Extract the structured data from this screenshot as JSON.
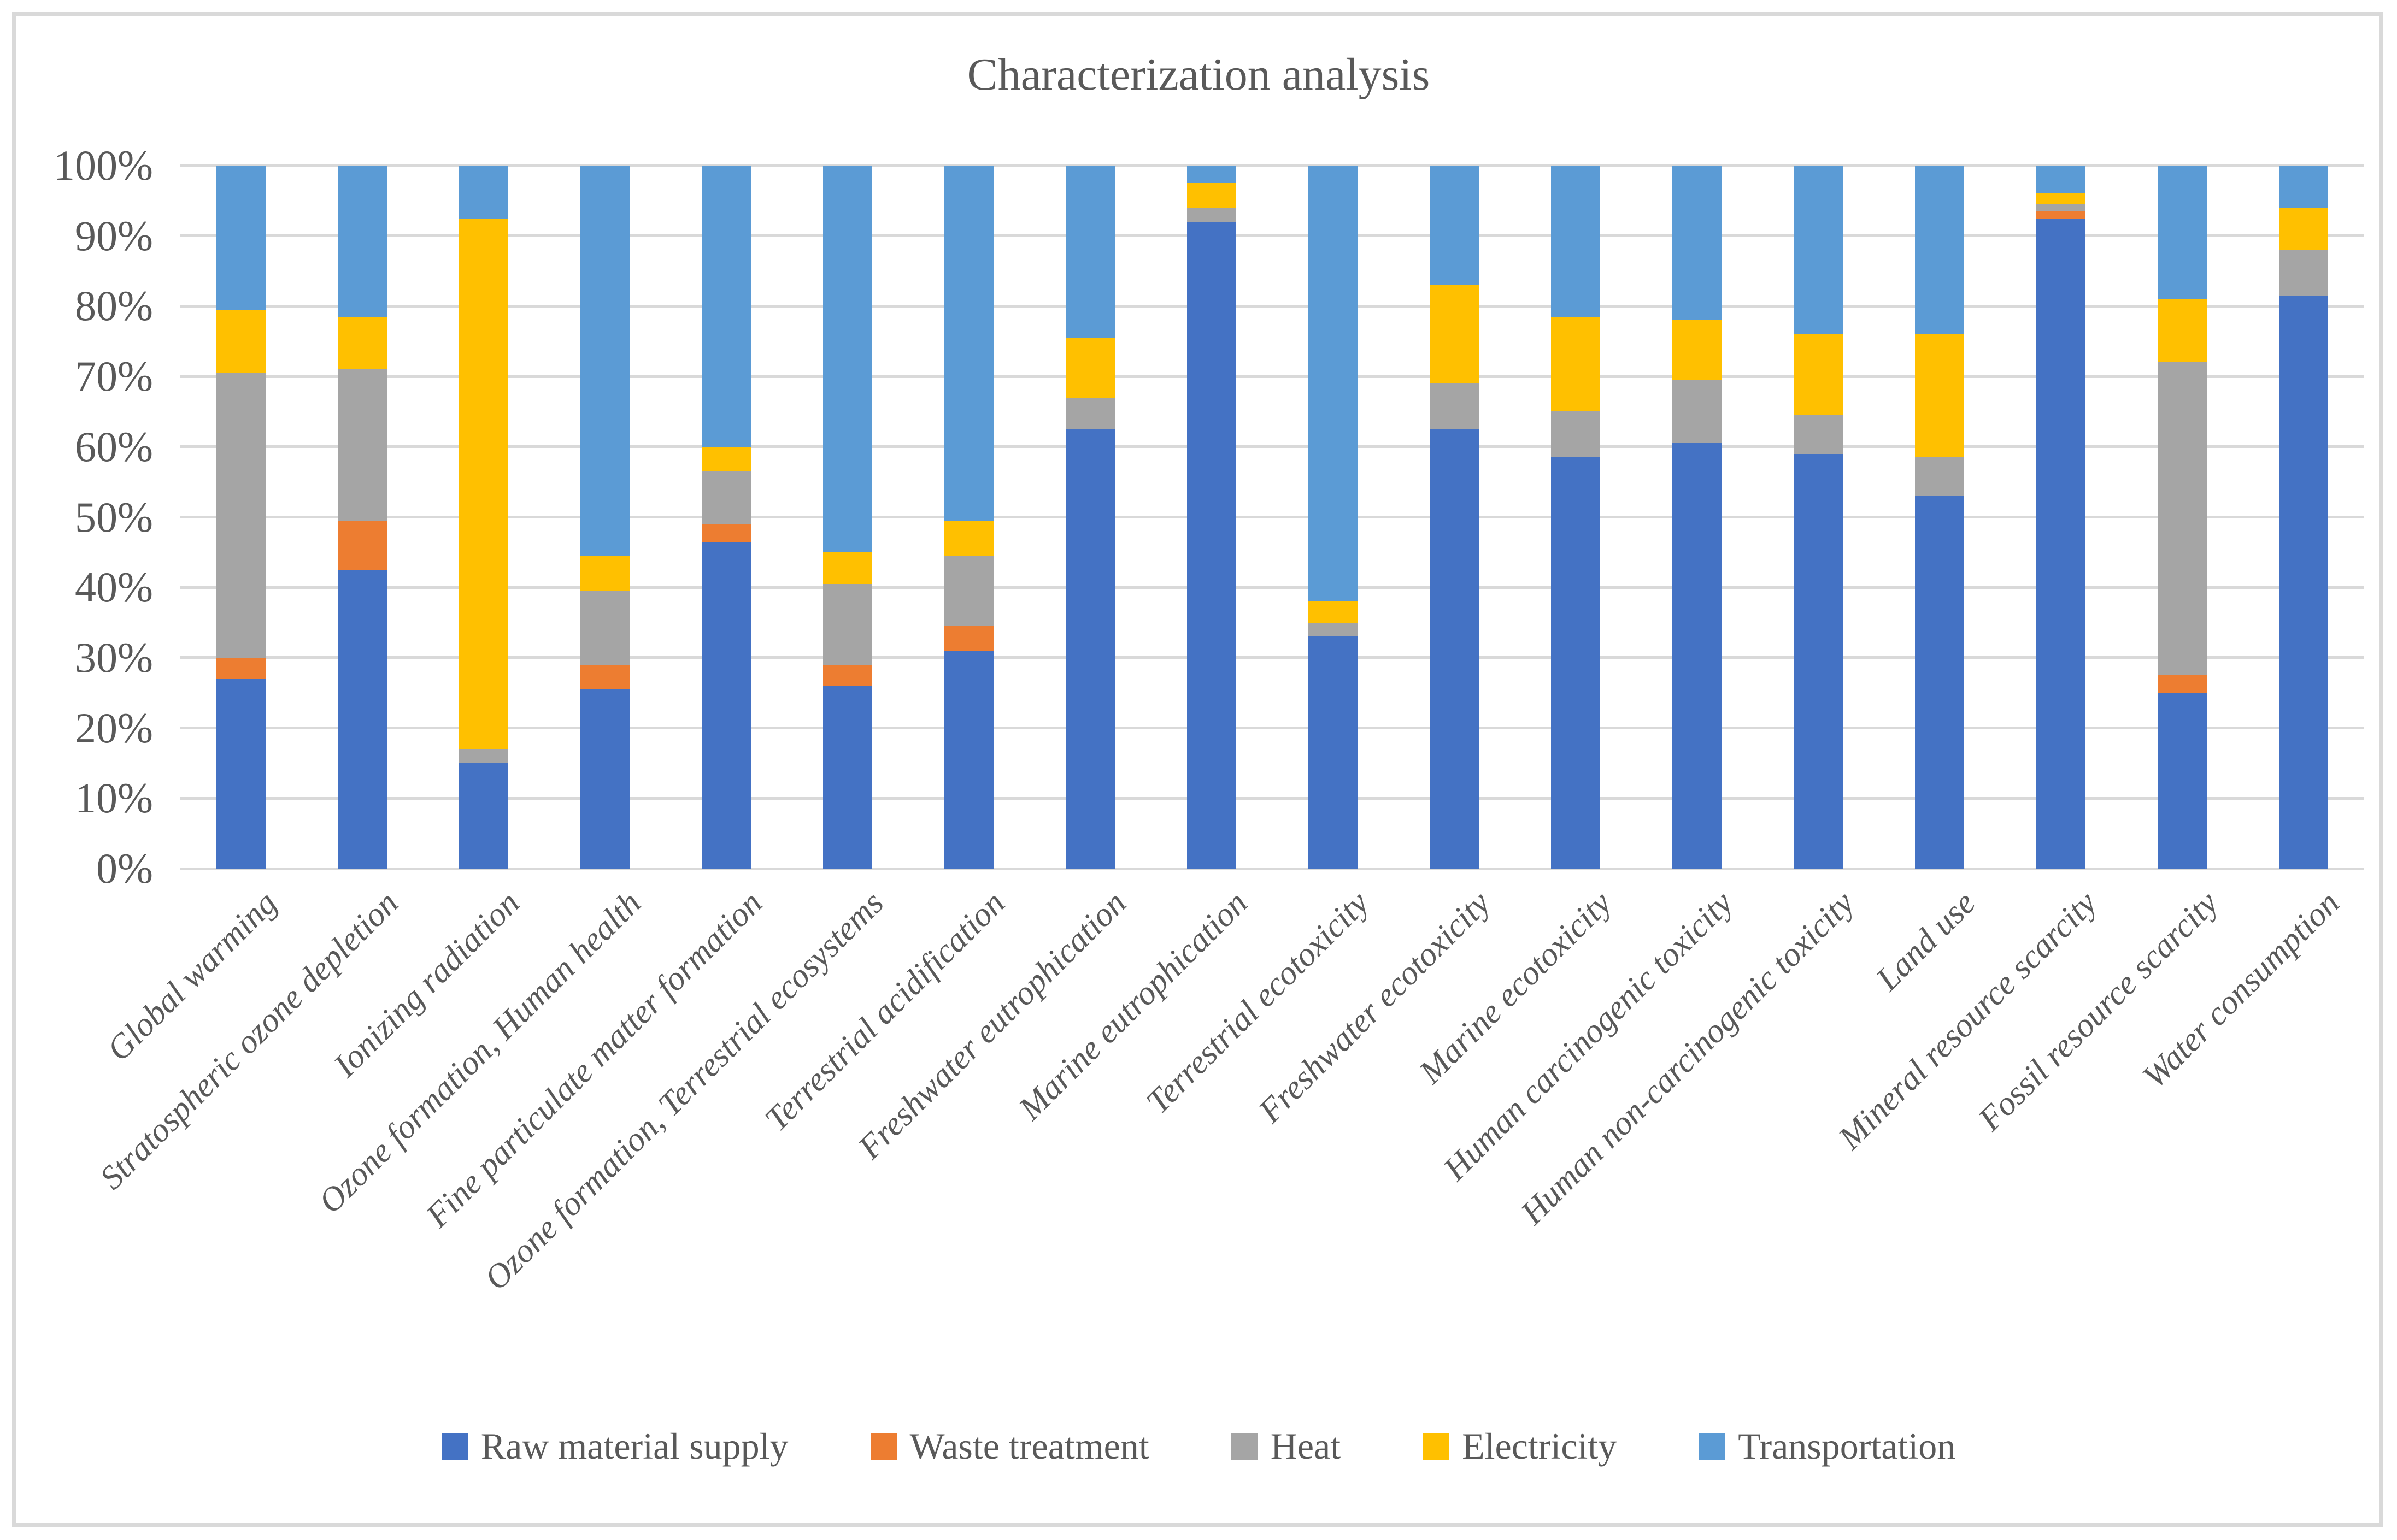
{
  "title": "Characterization analysis",
  "style": {
    "text_color": "#595959",
    "grid_color": "#D9D9D9",
    "frame_color": "#D9D9D9",
    "background": "#ffffff"
  },
  "chart_data": {
    "type": "bar",
    "subtype": "stacked-100-percent-column",
    "title": "Characterization analysis",
    "xlabel": "",
    "ylabel": "",
    "ylim": [
      0,
      100
    ],
    "grid": true,
    "legend_position": "bottom",
    "y_ticks": [
      "0%",
      "10%",
      "20%",
      "30%",
      "40%",
      "50%",
      "60%",
      "70%",
      "80%",
      "90%",
      "100%"
    ],
    "categories": [
      "Global warming",
      "Stratospheric ozone depletion",
      "Ionizing radiation",
      "Ozone formation, Human health",
      "Fine particulate matter formation",
      "Ozone formation, Terrestrial ecosystems",
      "Terrestrial acidification",
      "Freshwater eutrophication",
      "Marine eutrophication",
      "Terrestrial ecotoxicity",
      "Freshwater ecotoxicity",
      "Marine ecotoxicity",
      "Human carcinogenic toxicity",
      "Human non-carcinogenic toxicity",
      "Land use",
      "Mineral resource scarcity",
      "Fossil resource scarcity",
      "Water consumption"
    ],
    "series": [
      {
        "name": "Raw material supply",
        "color": "#4472C4",
        "values": [
          27,
          42.5,
          15,
          25.5,
          46.5,
          26,
          31,
          62.5,
          92,
          33,
          62.5,
          58.5,
          60.5,
          59,
          53,
          92.5,
          25,
          81.5
        ]
      },
      {
        "name": "Waste treatment",
        "color": "#ED7D31",
        "values": [
          3,
          7,
          0,
          3.5,
          2.5,
          3,
          3.5,
          0,
          0,
          0,
          0,
          0,
          0,
          0,
          0,
          1,
          2.5,
          0
        ]
      },
      {
        "name": "Heat",
        "color": "#A5A5A5",
        "values": [
          40.5,
          21.5,
          2,
          10.5,
          7.5,
          11.5,
          10,
          4.5,
          2,
          2,
          6.5,
          6.5,
          9,
          5.5,
          5.5,
          1,
          44.5,
          6.5
        ]
      },
      {
        "name": "Electricity",
        "color": "#FFC000",
        "values": [
          9,
          7.5,
          75.5,
          5,
          3.5,
          4.5,
          5,
          8.5,
          3.5,
          3,
          14,
          13.5,
          8.5,
          11.5,
          17.5,
          1.5,
          9,
          6
        ]
      },
      {
        "name": "Transportation",
        "color": "#5B9BD5",
        "values": [
          20.5,
          21.5,
          7.5,
          55.5,
          40,
          55,
          50.5,
          24.5,
          2.5,
          62,
          17,
          21.5,
          22,
          24,
          24,
          4,
          19,
          6
        ]
      }
    ]
  }
}
